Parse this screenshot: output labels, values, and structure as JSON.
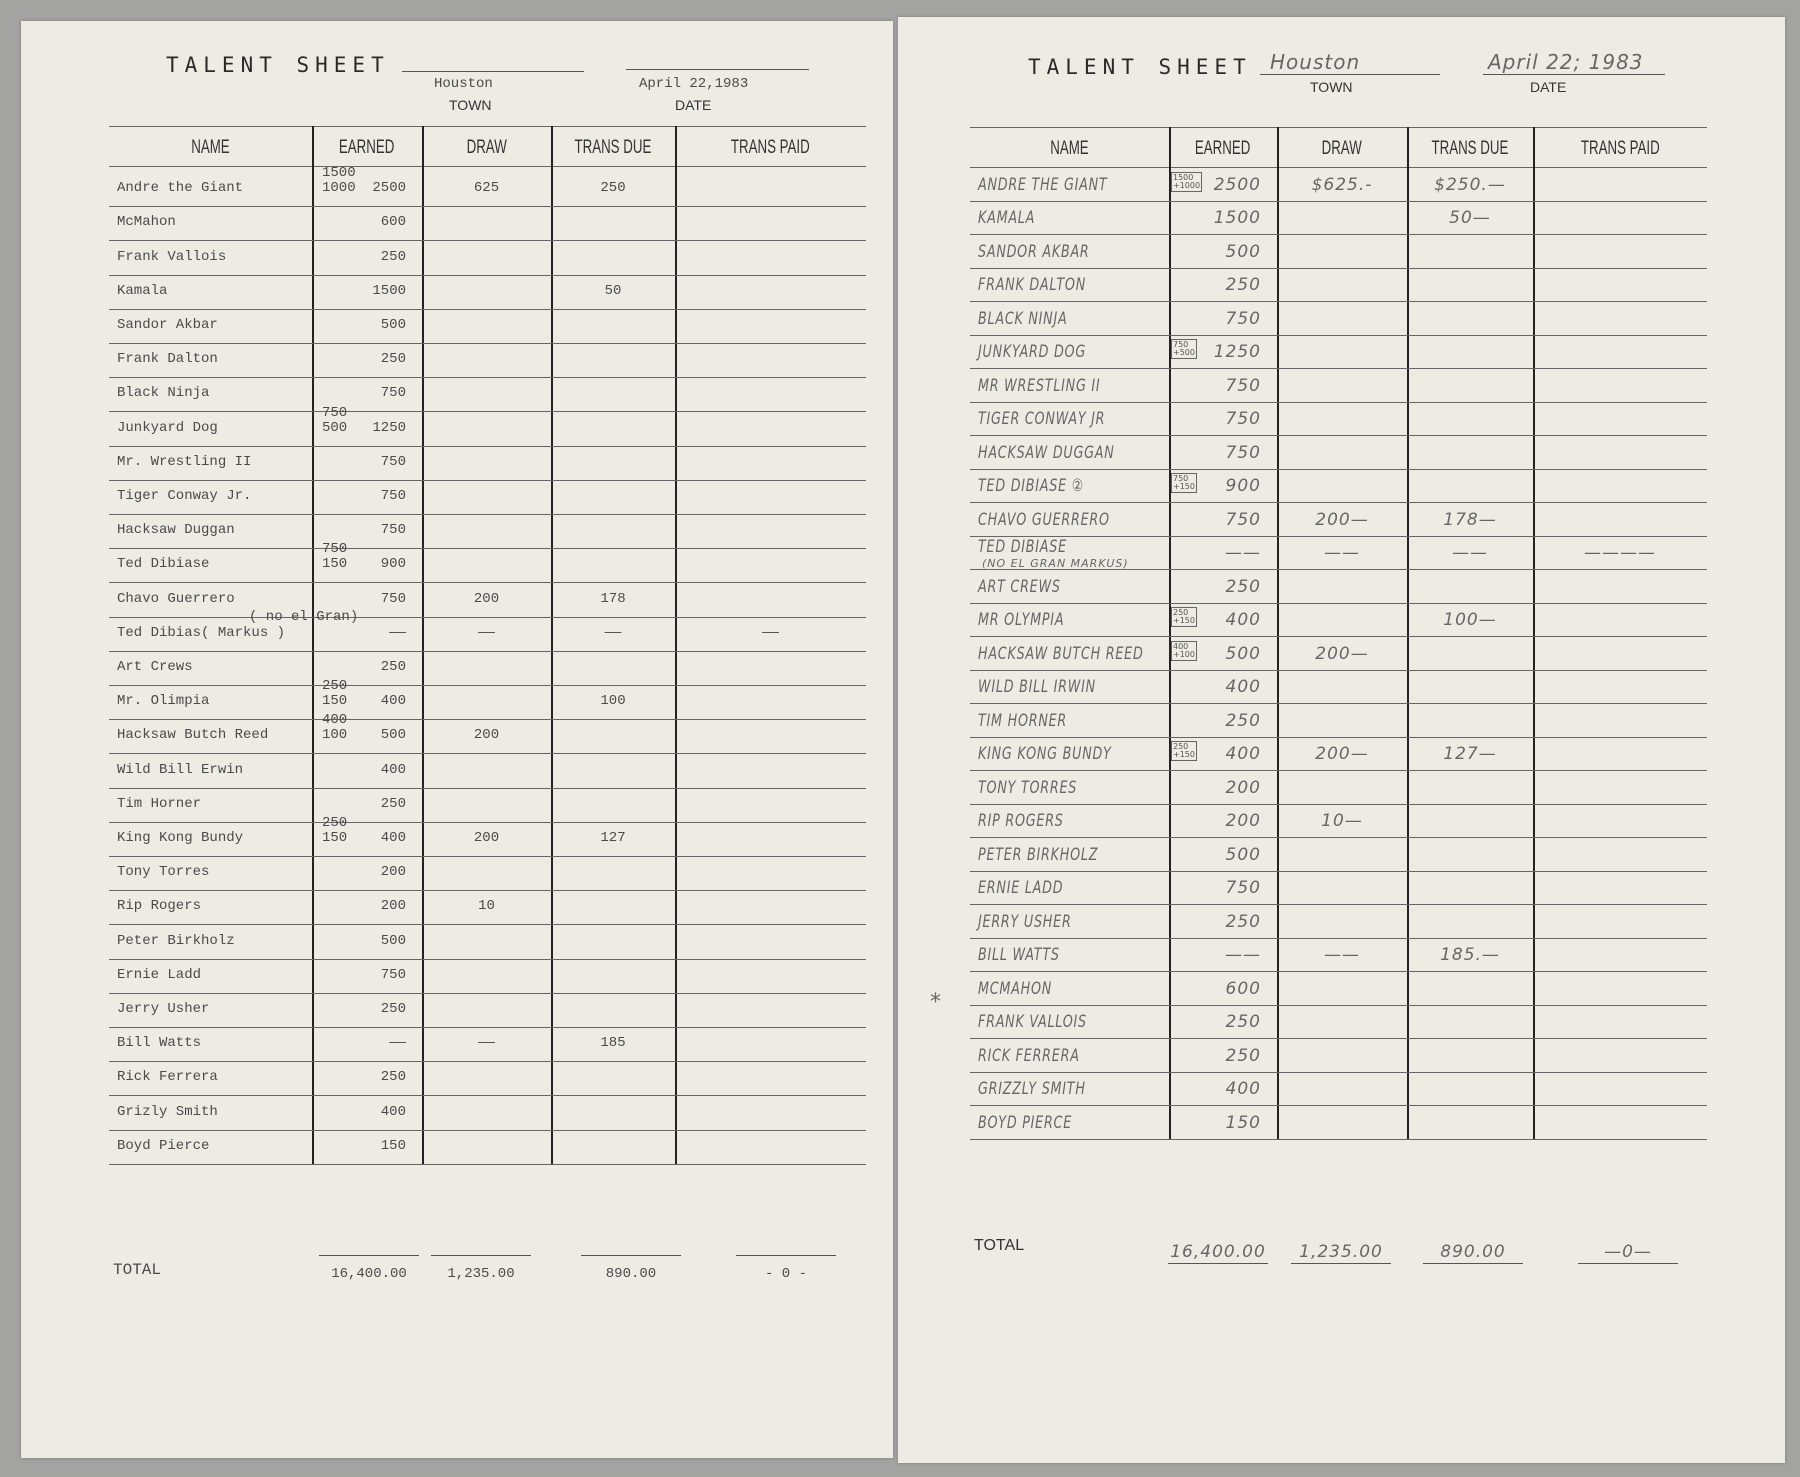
{
  "left_sheet": {
    "title": "TALENT SHEET",
    "town_label": "TOWN",
    "town": "Houston",
    "date_label": "DATE",
    "date": "April 22,1983",
    "columns": [
      "NAME",
      "EARNED",
      "DRAW",
      "TRANS DUE",
      "TRANS PAID"
    ],
    "rows": [
      {
        "name": "Andre the Giant",
        "split": [
          "1500",
          "1000"
        ],
        "earned": "2500",
        "draw": "625",
        "trans_due": "250",
        "trans_paid": ""
      },
      {
        "name": "McMahon",
        "earned": "600",
        "draw": "",
        "trans_due": "",
        "trans_paid": ""
      },
      {
        "name": "Frank Vallois",
        "earned": "250",
        "draw": "",
        "trans_due": "",
        "trans_paid": ""
      },
      {
        "name": "Kamala",
        "earned": "1500",
        "draw": "",
        "trans_due": "50",
        "trans_paid": ""
      },
      {
        "name": "Sandor Akbar",
        "earned": "500",
        "draw": "",
        "trans_due": "",
        "trans_paid": ""
      },
      {
        "name": "Frank Dalton",
        "earned": "250",
        "draw": "",
        "trans_due": "",
        "trans_paid": ""
      },
      {
        "name": "Black Ninja",
        "earned": "750",
        "draw": "",
        "trans_due": "",
        "trans_paid": ""
      },
      {
        "name": "Junkyard Dog",
        "split": [
          "750",
          "500"
        ],
        "earned": "1250",
        "draw": "",
        "trans_due": "",
        "trans_paid": ""
      },
      {
        "name": "Mr. Wrestling II",
        "earned": "750",
        "draw": "",
        "trans_due": "",
        "trans_paid": ""
      },
      {
        "name": "Tiger Conway Jr.",
        "earned": "750",
        "draw": "",
        "trans_due": "",
        "trans_paid": ""
      },
      {
        "name": "Hacksaw Duggan",
        "earned": "750",
        "draw": "",
        "trans_due": "",
        "trans_paid": ""
      },
      {
        "name": "Ted Dibiase",
        "split": [
          "750",
          "150"
        ],
        "earned": "900",
        "draw": "",
        "trans_due": "",
        "trans_paid": ""
      },
      {
        "name": "Chavo Guerrero",
        "earned": "750",
        "draw": "200",
        "trans_due": "178",
        "trans_paid": ""
      },
      {
        "name": "Ted Dibias( Markus   )",
        "prefix": "( no el Gran)",
        "earned": "——",
        "draw": "——",
        "trans_due": "——",
        "trans_paid": "——"
      },
      {
        "name": "Art Crews",
        "earned": "250",
        "draw": "",
        "trans_due": "",
        "trans_paid": ""
      },
      {
        "name": "Mr. Olimpia",
        "split": [
          "250",
          "150"
        ],
        "earned": "400",
        "draw": "",
        "trans_due": "100",
        "trans_paid": ""
      },
      {
        "name": "Hacksaw Butch Reed",
        "split": [
          "400",
          "100"
        ],
        "earned": "500",
        "draw": "200",
        "trans_due": "",
        "trans_paid": ""
      },
      {
        "name": "Wild Bill Erwin",
        "earned": "400",
        "draw": "",
        "trans_due": "",
        "trans_paid": ""
      },
      {
        "name": "Tim Horner",
        "earned": "250",
        "draw": "",
        "trans_due": "",
        "trans_paid": ""
      },
      {
        "name": "King Kong Bundy",
        "split": [
          "250",
          "150"
        ],
        "earned": "400",
        "draw": "200",
        "trans_due": "127",
        "trans_paid": ""
      },
      {
        "name": "Tony Torres",
        "earned": "200",
        "draw": "",
        "trans_due": "",
        "trans_paid": ""
      },
      {
        "name": "Rip Rogers",
        "earned": "200",
        "draw": "10",
        "trans_due": "",
        "trans_paid": ""
      },
      {
        "name": "Peter Birkholz",
        "earned": "500",
        "draw": "",
        "trans_due": "",
        "trans_paid": ""
      },
      {
        "name": "Ernie Ladd",
        "earned": "750",
        "draw": "",
        "trans_due": "",
        "trans_paid": ""
      },
      {
        "name": "Jerry Usher",
        "earned": "250",
        "draw": "",
        "trans_due": "",
        "trans_paid": ""
      },
      {
        "name": "Bill Watts",
        "earned": "——",
        "draw": "——",
        "trans_due": "185",
        "trans_paid": ""
      },
      {
        "name": "Rick Ferrera",
        "earned": "250",
        "draw": "",
        "trans_due": "",
        "trans_paid": ""
      },
      {
        "name": "Grizly Smith",
        "earned": "400",
        "draw": "",
        "trans_due": "",
        "trans_paid": ""
      },
      {
        "name": "Boyd Pierce",
        "earned": "150",
        "draw": "",
        "trans_due": "",
        "trans_paid": ""
      }
    ],
    "total_label": "TOTAL",
    "totals": {
      "earned": "16,400.00",
      "draw": "1,235.00",
      "trans_due": "890.00",
      "trans_paid": "- 0 -"
    }
  },
  "right_sheet": {
    "title": "TALENT SHEET",
    "town_label": "TOWN",
    "town": "Houston",
    "date_label": "DATE",
    "date": "April 22; 1983",
    "columns": [
      "NAME",
      "EARNED",
      "DRAW",
      "TRANS DUE",
      "TRANS PAID"
    ],
    "rows": [
      {
        "name": "ANDRE THE GIANT",
        "box": [
          "1500",
          "+1000"
        ],
        "earned": "2500",
        "draw": "$625.-",
        "trans_due": "$250.—",
        "trans_paid": ""
      },
      {
        "name": "KAMALA",
        "earned": "1500",
        "draw": "",
        "trans_due": "50—",
        "trans_paid": ""
      },
      {
        "name": "SANDOR AKBAR",
        "earned": "500",
        "draw": "",
        "trans_due": "",
        "trans_paid": ""
      },
      {
        "name": "FRANK DALTON",
        "earned": "250",
        "draw": "",
        "trans_due": "",
        "trans_paid": ""
      },
      {
        "name": "BLACK NINJA",
        "earned": "750",
        "draw": "",
        "trans_due": "",
        "trans_paid": ""
      },
      {
        "name": "JUNKYARD DOG",
        "box": [
          "750",
          "+500"
        ],
        "earned": "1250",
        "draw": "",
        "trans_due": "",
        "trans_paid": ""
      },
      {
        "name": "MR WRESTLING II",
        "earned": "750",
        "draw": "",
        "trans_due": "",
        "trans_paid": ""
      },
      {
        "name": "TIGER CONWAY JR",
        "earned": "750",
        "draw": "",
        "trans_due": "",
        "trans_paid": ""
      },
      {
        "name": "HACKSAW DUGGAN",
        "earned": "750",
        "draw": "",
        "trans_due": "",
        "trans_paid": ""
      },
      {
        "name": "TED DIBIASE ②",
        "box": [
          "750",
          "+150"
        ],
        "earned": "900",
        "draw": "",
        "trans_due": "",
        "trans_paid": ""
      },
      {
        "name": "CHAVO GUERRERO",
        "earned": "750",
        "draw": "200—",
        "trans_due": "178—",
        "trans_paid": ""
      },
      {
        "name": "TED DIBIASE",
        "sub": "(NO EL GRAN MARKUS)",
        "earned": "——",
        "draw": "——",
        "trans_due": "——",
        "trans_paid": "————"
      },
      {
        "name": "ART CREWS",
        "earned": "250",
        "draw": "",
        "trans_due": "",
        "trans_paid": ""
      },
      {
        "name": "MR OLYMPIA",
        "box": [
          "250",
          "+150"
        ],
        "earned": "400",
        "draw": "",
        "trans_due": "100—",
        "trans_paid": ""
      },
      {
        "name": "HACKSAW BUTCH REED",
        "box": [
          "400",
          "+100"
        ],
        "earned": "500",
        "draw": "200—",
        "trans_due": "",
        "trans_paid": ""
      },
      {
        "name": "WILD BILL IRWIN",
        "earned": "400",
        "draw": "",
        "trans_due": "",
        "trans_paid": ""
      },
      {
        "name": "TIM HORNER",
        "earned": "250",
        "draw": "",
        "trans_due": "",
        "trans_paid": ""
      },
      {
        "name": "KING KONG BUNDY",
        "box": [
          "250",
          "+150"
        ],
        "earned": "400",
        "draw": "200—",
        "trans_due": "127—",
        "trans_paid": ""
      },
      {
        "name": "TONY TORRES",
        "earned": "200",
        "draw": "",
        "trans_due": "",
        "trans_paid": ""
      },
      {
        "name": "RIP ROGERS",
        "earned": "200",
        "draw": "10—",
        "trans_due": "",
        "trans_paid": ""
      },
      {
        "name": "PETER BIRKHOLZ",
        "earned": "500",
        "draw": "",
        "trans_due": "",
        "trans_paid": ""
      },
      {
        "name": "ERNIE LADD",
        "earned": "750",
        "draw": "",
        "trans_due": "",
        "trans_paid": ""
      },
      {
        "name": "JERRY USHER",
        "earned": "250",
        "draw": "",
        "trans_due": "",
        "trans_paid": ""
      },
      {
        "name": "BILL WATTS",
        "earned": "——",
        "draw": "——",
        "trans_due": "185.—",
        "trans_paid": ""
      },
      {
        "name": "MCMAHON",
        "mark": "*",
        "earned": "600",
        "draw": "",
        "trans_due": "",
        "trans_paid": ""
      },
      {
        "name": "FRANK VALLOIS",
        "earned": "250",
        "draw": "",
        "trans_due": "",
        "trans_paid": ""
      },
      {
        "name": "RICK FERRERA",
        "earned": "250",
        "draw": "",
        "trans_due": "",
        "trans_paid": ""
      },
      {
        "name": "GRIZZLY SMITH",
        "earned": "400",
        "draw": "",
        "trans_due": "",
        "trans_paid": ""
      },
      {
        "name": "BOYD PIERCE",
        "earned": "150",
        "draw": "",
        "trans_due": "",
        "trans_paid": ""
      }
    ],
    "total_label": "TOTAL",
    "totals": {
      "earned": "16,400.00",
      "draw": "1,235.00",
      "trans_due": "890.00",
      "trans_paid": "—0—"
    }
  },
  "colors": {
    "paper": "#edece4",
    "background": "#a3a3a1",
    "ink": "#333333",
    "pencil": "#666666"
  }
}
